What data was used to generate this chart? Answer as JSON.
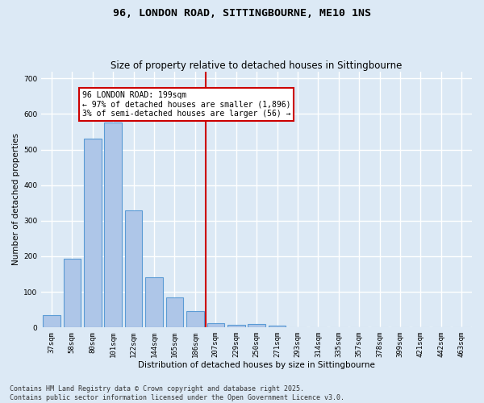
{
  "title": "96, LONDON ROAD, SITTINGBOURNE, ME10 1NS",
  "subtitle": "Size of property relative to detached houses in Sittingbourne",
  "xlabel": "Distribution of detached houses by size in Sittingbourne",
  "ylabel": "Number of detached properties",
  "categories": [
    "37sqm",
    "58sqm",
    "80sqm",
    "101sqm",
    "122sqm",
    "144sqm",
    "165sqm",
    "186sqm",
    "207sqm",
    "229sqm",
    "250sqm",
    "271sqm",
    "293sqm",
    "314sqm",
    "335sqm",
    "357sqm",
    "378sqm",
    "399sqm",
    "421sqm",
    "442sqm",
    "463sqm"
  ],
  "values": [
    35,
    193,
    530,
    575,
    330,
    142,
    85,
    46,
    12,
    8,
    10,
    5,
    0,
    0,
    0,
    0,
    0,
    0,
    0,
    0,
    0
  ],
  "bar_color": "#aec6e8",
  "bar_edge_color": "#5b9bd5",
  "vline_x_index": 7.5,
  "vline_color": "#cc0000",
  "annotation_text": "96 LONDON ROAD: 199sqm\n← 97% of detached houses are smaller (1,896)\n3% of semi-detached houses are larger (56) →",
  "annotation_box_color": "#ffffff",
  "annotation_box_edgecolor": "#cc0000",
  "ylim": [
    0,
    720
  ],
  "yticks": [
    0,
    100,
    200,
    300,
    400,
    500,
    600,
    700
  ],
  "background_color": "#dce9f5",
  "grid_color": "#ffffff",
  "footer_line1": "Contains HM Land Registry data © Crown copyright and database right 2025.",
  "footer_line2": "Contains public sector information licensed under the Open Government Licence v3.0.",
  "title_fontsize": 9.5,
  "subtitle_fontsize": 8.5,
  "axis_label_fontsize": 7.5,
  "tick_fontsize": 6.5,
  "annotation_fontsize": 7,
  "footer_fontsize": 6
}
